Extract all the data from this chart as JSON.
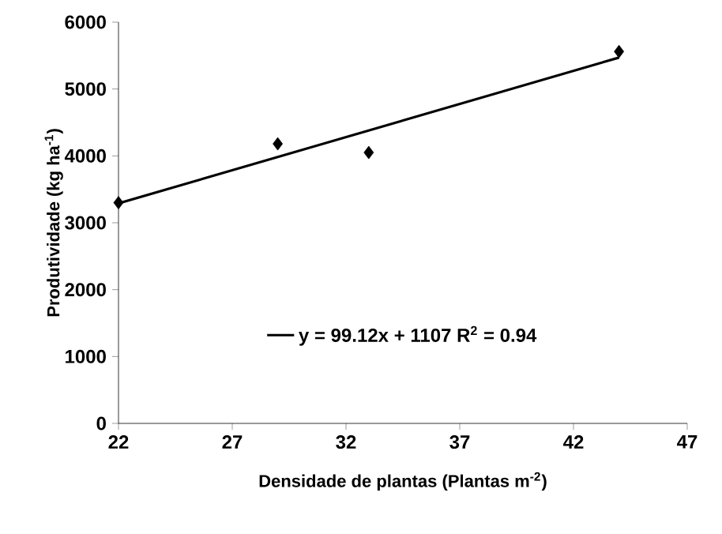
{
  "chart_data": {
    "type": "scatter",
    "xlabel": "Densidade de plantas (Plantas m$^{-2}$)",
    "ylabel": "Produtividade (kg ha$^{-1}$)",
    "xlim": [
      22,
      47
    ],
    "xticks": [
      22,
      27,
      32,
      37,
      42,
      47
    ],
    "ylim": [
      0,
      6000
    ],
    "yticks": [
      0,
      1000,
      2000,
      3000,
      4000,
      5000,
      6000
    ],
    "grid": false,
    "legend": "bottom",
    "series": [
      {
        "marker": "diamond",
        "color": "#000000",
        "x": [
          22,
          29,
          33,
          44
        ],
        "values": [
          3300,
          4180,
          4050,
          5560
        ]
      },
      {
        "type": "line",
        "marker": "none",
        "line_style": "solid",
        "name": "y = 99.12x + 1107 R$^{2}$ = 0.94",
        "color": "#000000",
        "x": [
          22,
          44
        ],
        "values": [
          3290,
          5470
        ]
      }
    ]
  }
}
